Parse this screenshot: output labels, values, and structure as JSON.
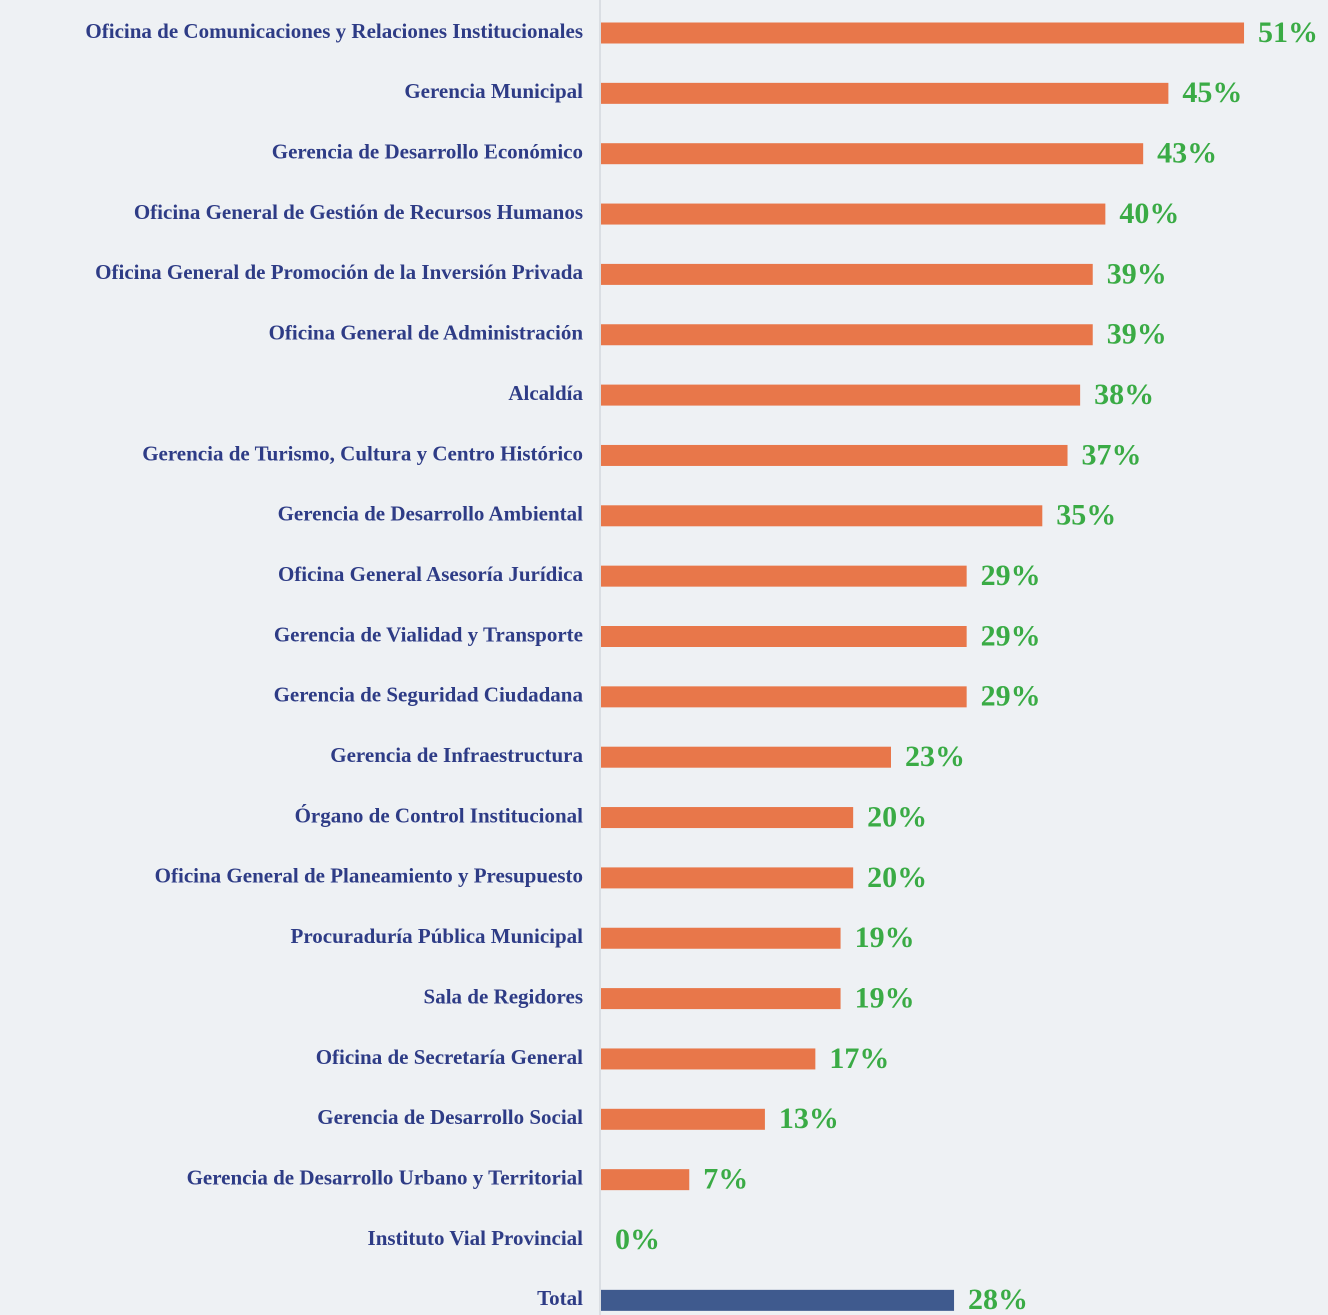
{
  "chart_data": {
    "type": "barh",
    "categories": [
      "Oficina de Comunicaciones y Relaciones Institucionales",
      "Gerencia Municipal",
      "Gerencia de Desarrollo Económico",
      "Oficina General de Gestión de Recursos Humanos",
      "Oficina General de Promoción de la Inversión Privada",
      "Oficina General de Administración",
      "Alcaldía",
      "Gerencia de Turismo, Cultura y Centro Histórico",
      "Gerencia de Desarrollo Ambiental",
      "Oficina General Asesoría Jurídica",
      "Gerencia de Vialidad y Transporte",
      "Gerencia de Seguridad Ciudadana",
      "Gerencia de Infraestructura",
      "Órgano de Control Institucional",
      "Oficina General de Planeamiento y Presupuesto",
      "Procuraduría Pública Municipal",
      "Sala de Regidores",
      "Oficina de Secretaría General",
      "Gerencia de Desarrollo Social",
      "Gerencia de Desarrollo Urbano y Territorial",
      "Instituto Vial Provincial",
      "Total"
    ],
    "values": [
      51,
      45,
      43,
      40,
      39,
      39,
      38,
      37,
      35,
      29,
      29,
      29,
      23,
      20,
      20,
      19,
      19,
      17,
      13,
      7,
      0,
      28
    ],
    "value_labels": [
      "51%",
      "45%",
      "43%",
      "40%",
      "39%",
      "39%",
      "38%",
      "37%",
      "35%",
      "29%",
      "29%",
      "29%",
      "23%",
      "20%",
      "20%",
      "19%",
      "19%",
      "17%",
      "13%",
      "7%",
      "0%",
      "28%"
    ],
    "colors": [
      "#e8774a",
      "#e8774a",
      "#e8774a",
      "#e8774a",
      "#e8774a",
      "#e8774a",
      "#e8774a",
      "#e8774a",
      "#e8774a",
      "#e8774a",
      "#e8774a",
      "#e8774a",
      "#e8774a",
      "#e8774a",
      "#e8774a",
      "#e8774a",
      "#e8774a",
      "#e8774a",
      "#e8774a",
      "#e8774a",
      "#e8774a",
      "#3f5a8e"
    ],
    "xlim": [
      0,
      57.5
    ]
  }
}
